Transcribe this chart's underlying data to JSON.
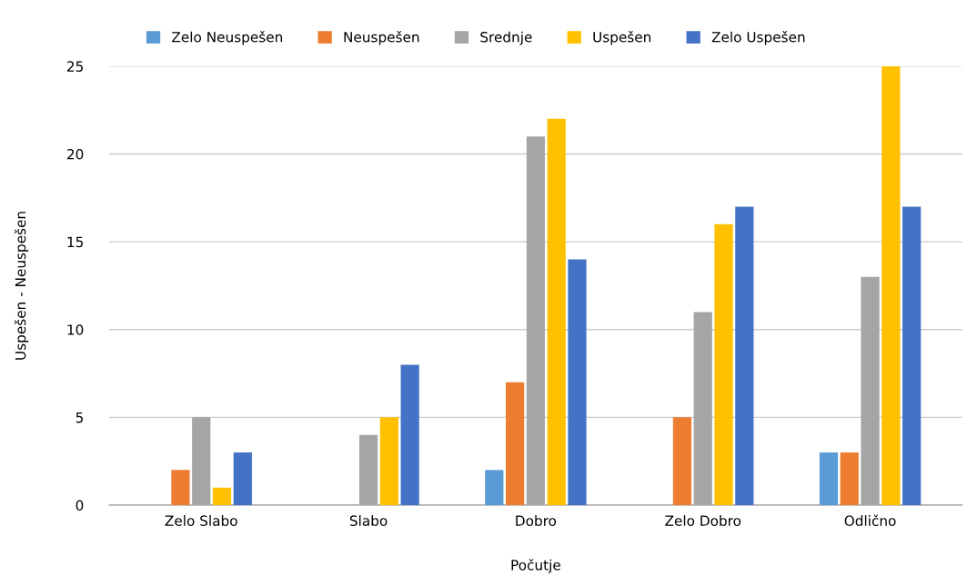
{
  "chart_data": {
    "type": "bar",
    "xlabel": "Počutje",
    "ylabel": "Uspešen - Neuspešen",
    "categories": [
      "Zelo Slabo",
      "Slabo",
      "Dobro",
      "Zelo Dobro",
      "Odlično"
    ],
    "series": [
      {
        "name": "Zelo Neuspešen",
        "color": "#5b9bd5",
        "values": [
          0,
          0,
          2,
          0,
          3
        ]
      },
      {
        "name": "Neuspešen",
        "color": "#ed7d31",
        "values": [
          2,
          0,
          7,
          5,
          3
        ]
      },
      {
        "name": "Srednje",
        "color": "#a5a5a5",
        "values": [
          5,
          4,
          21,
          11,
          13
        ]
      },
      {
        "name": "Uspešen",
        "color": "#ffc000",
        "values": [
          1,
          5,
          22,
          16,
          25
        ]
      },
      {
        "name": "Zelo Uspešen",
        "color": "#4472c4",
        "values": [
          3,
          8,
          14,
          17,
          17
        ]
      }
    ],
    "ylim": [
      0,
      25
    ],
    "yticks": [
      0,
      5,
      10,
      15,
      20,
      25
    ],
    "grid": "y",
    "legend": "top"
  }
}
